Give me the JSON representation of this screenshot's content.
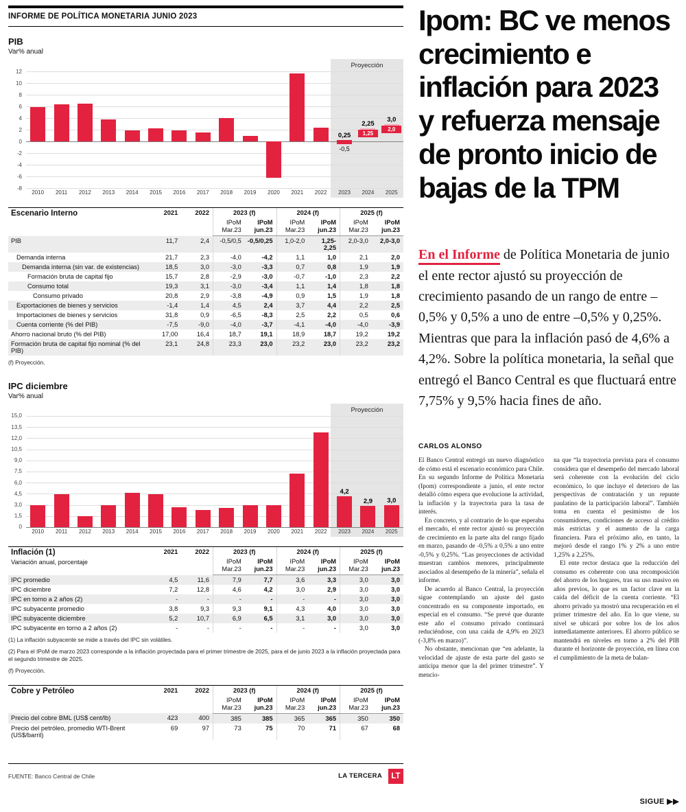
{
  "colors": {
    "red": "#e2223f",
    "pink": "#f2a9b6",
    "projection_zone": "#e5e5e5",
    "row_stripe": "#ececec"
  },
  "masthead": {
    "kicker": "INFORME DE POLÍTICA MONETARIA JUNIO 2023"
  },
  "headline_lines": [
    "Ipom: BC ve menos",
    "crecimiento e",
    "inflación para 2023",
    "y refuerza mensaje",
    "de pronto inicio de",
    "bajas de la TPM"
  ],
  "lead": {
    "highlight": "En el Informe",
    "rest": " de Política Monetaria de junio el ente rector ajustó su proyección de crecimiento pasando de un rango de entre –0,5% y 0,5% a uno de entre –0,5% y 0,25%. Mientras que para la inflación pasó de 4,6% a 4,2%. Sobre la política monetaria, la señal que entregó el Banco Central es que fluctuará entre 7,75% y 9,5% hacia fines de año."
  },
  "byline": "CARLOS ALONSO",
  "article": {
    "col1": [
      "El Banco Central entregó un nuevo diagnóstico de cómo está el escenario económico para Chile. En su segundo Informe de Política Monetaria (Ipom) correspondiente a junio, el ente rector detalló cómo espera que evolucione la actividad, la inflación y la trayectoria para la tasa de interés.",
      "En concreto, y al contrario de lo que esperaba el mercado, el ente rector ajustó su proyección de crecimiento en la parte alta del rango fijado en marzo, pasando de -0,5% a 0,5% a uno entre -0,5% y 0,25%. “Las proyecciones de actividad muestran cambios menores, principalmente asociados al desempeño de la minería”, señala el informe.",
      "De acuerdo al Banco Central, la proyección sigue contemplando un ajuste del gasto concentrado en su componente importado, en especial en el consumo. “Se prevé que durante este año el consumo privado continuará reduciéndose, con una caída de 4,9% en 2023 (-3,8% en marzo)”.",
      "No obstante, mencionan que “en adelante, la velocidad de ajuste de esta parte del gasto se anticipa menor que la del primer trimestre”. Y mencio-"
    ],
    "col2": [
      "na que “la trayectoria prevista para el consumo considera que el desempeño del mercado laboral será coherente con la evolución del ciclo económico, lo que incluye el deterioro de las perspectivas de contratación y un repunte paulatino de la participación laboral”. También toma en cuenta el pesimismo de los consumidores, condiciones de acceso al crédito más estrictas y el aumento de la carga financiera. Para el próximo año, en tanto, la mejoró desde el rango 1% y 2% a uno entre 1,25% a 2,25%.",
      "El ente rector destaca que la reducción del consumo es coherente con una recomposición del ahorro de los hogares, tras su uso masivo en años previos, lo que es un factor clave en la caída del déficit de la cuenta corriente. “El ahorro privado ya mostró una recuperación en el primer trimestre del año. En lo que viene, su nivel se ubicará por sobre los de los años inmediatamente anteriores. El ahorro público se mantendrá en niveles en torno a 2% del PIB durante el horizonte de proyección, en línea con el cumplimiento de la meta de balan-"
    ]
  },
  "chart_data": [
    {
      "id": "pib",
      "type": "bar",
      "title": "PIB",
      "ylabel": "Var% anual",
      "ylim": [
        -8,
        12
      ],
      "yticks": [
        12,
        10,
        8,
        6,
        4,
        2,
        0,
        -2,
        -4,
        -6,
        -8
      ],
      "ytick_labels": [
        "12",
        "10",
        "8",
        "6",
        "4",
        "2",
        "0",
        "-2",
        "-4",
        "-6",
        "-8"
      ],
      "categories": [
        "2010",
        "2011",
        "2012",
        "2013",
        "2014",
        "2015",
        "2016",
        "2017",
        "2018",
        "2019",
        "2020",
        "2021",
        "2022",
        "2023",
        "2024",
        "2025"
      ],
      "values": [
        5.9,
        6.4,
        6.5,
        3.8,
        1.9,
        2.2,
        1.9,
        1.5,
        4.0,
        0.9,
        -6.2,
        11.7,
        2.4,
        null,
        null,
        null
      ],
      "projection": {
        "label": "Proyección",
        "start_index": 13,
        "ranges": [
          {
            "category": "2023",
            "min": -0.5,
            "max": 0.25,
            "min_label": "-0,5",
            "max_label": "0,25",
            "style": "solid"
          },
          {
            "category": "2024",
            "min": 1.25,
            "max": 2.25,
            "min_label": "1,25",
            "max_label": "2,25",
            "style": "range"
          },
          {
            "category": "2025",
            "min": 2.0,
            "max": 3.0,
            "min_label": "2,0",
            "max_label": "3,0",
            "style": "range"
          }
        ]
      }
    },
    {
      "id": "ipc",
      "type": "bar",
      "title": "IPC diciembre",
      "ylabel": "Var% anual",
      "ylim": [
        0,
        15
      ],
      "yticks": [
        15,
        13.5,
        12,
        10.5,
        9,
        7.5,
        6,
        4.5,
        3,
        1.5,
        0
      ],
      "ytick_labels": [
        "15,0",
        "13,5",
        "12,0",
        "10,5",
        "9,0",
        "7,5",
        "6,0",
        "4,5",
        "3,0",
        "1,5",
        "0"
      ],
      "categories": [
        "2010",
        "2011",
        "2012",
        "2013",
        "2014",
        "2015",
        "2016",
        "2017",
        "2018",
        "2019",
        "2020",
        "2021",
        "2022",
        "2023",
        "2024",
        "2025"
      ],
      "values": [
        3.0,
        4.4,
        1.5,
        3.0,
        4.6,
        4.4,
        2.7,
        2.3,
        2.6,
        3.0,
        3.0,
        7.2,
        12.8,
        4.2,
        2.9,
        3.0
      ],
      "projection": {
        "label": "Proyección",
        "start_index": 13,
        "value_labels": [
          {
            "category": "2023",
            "label": "4,2"
          },
          {
            "category": "2024",
            "label": "2,9"
          },
          {
            "category": "2025",
            "label": "3,0"
          }
        ]
      }
    }
  ],
  "tables": [
    {
      "name": "escenario-interno-table",
      "title": "Escenario Interno",
      "subtitle": "",
      "years": [
        "2021",
        "2022",
        "2023 (f)",
        "2024 (f)",
        "2025 (f)"
      ],
      "sub_top": "IPoM",
      "sub_mar": "Mar.23",
      "sub_jun": "jun.23",
      "rows": [
        {
          "label": "PIB",
          "indent": 0,
          "values": [
            "11,7",
            "2,4",
            "-0,5/0,5",
            "-0,5/0,25",
            "1,0-2,0",
            "1,25-2,25",
            "2,0-3,0",
            "2,0-3,0"
          ]
        },
        {
          "label": "Demanda interna",
          "indent": 1,
          "values": [
            "21,7",
            "2,3",
            "-4,0",
            "-4,2",
            "1,1",
            "1,0",
            "2,1",
            "2,0"
          ]
        },
        {
          "label": "Demanda interna (sin var. de existencias)",
          "indent": 2,
          "values": [
            "18,5",
            "3,0",
            "-3,0",
            "-3,3",
            "0,7",
            "0,8",
            "1,9",
            "1,9"
          ]
        },
        {
          "label": "Formación bruta de capital fijo",
          "indent": 3,
          "values": [
            "15,7",
            "2,8",
            "-2,9",
            "-3,0",
            "-0,7",
            "-1,0",
            "2,3",
            "2,2"
          ]
        },
        {
          "label": "Consumo total",
          "indent": 3,
          "values": [
            "19,3",
            "3,1",
            "-3,0",
            "-3,4",
            "1,1",
            "1,4",
            "1,8",
            "1,8"
          ]
        },
        {
          "label": "Consumo privado",
          "indent": 4,
          "values": [
            "20,8",
            "2,9",
            "-3,8",
            "-4,9",
            "0,9",
            "1,5",
            "1,9",
            "1,8"
          ]
        },
        {
          "label": "Exportaciones de bienes y servicios",
          "indent": 1,
          "values": [
            "-1,4",
            "1,4",
            "4,5",
            "2,4",
            "3,7",
            "4,4",
            "2,2",
            "2,5"
          ]
        },
        {
          "label": "Importaciones de bienes y servicios",
          "indent": 1,
          "values": [
            "31,8",
            "0,9",
            "-6,5",
            "-8,3",
            "2,5",
            "2,2",
            "0,5",
            "0,6"
          ]
        },
        {
          "label": "Cuenta corriente (% del PIB)",
          "indent": 1,
          "values": [
            "-7,5",
            "-9,0",
            "-4,0",
            "-3,7",
            "-4,1",
            "-4,0",
            "-4,0",
            "-3,9"
          ]
        },
        {
          "label": "Ahorro nacional bruto (% del PIB)",
          "indent": 0,
          "values": [
            "17,00",
            "16,4",
            "18,7",
            "19,1",
            "18,9",
            "18,7",
            "19,2",
            "19,2"
          ]
        },
        {
          "label": "Formación bruta de capital fijo nominal (% del PIB)",
          "indent": 0,
          "values": [
            "23,1",
            "24,8",
            "23,3",
            "23,0",
            "23,2",
            "23,0",
            "23,2",
            "23,2"
          ]
        }
      ],
      "footnotes": [
        "(f) Proyección."
      ]
    },
    {
      "name": "inflacion-table",
      "title": "Inflación (1)",
      "subtitle": "Variación anual, porcentaje",
      "years": [
        "2021",
        "2022",
        "2023 (f)",
        "2024 (f)",
        "2025 (f)"
      ],
      "sub_top": "IPoM",
      "sub_mar": "Mar.23",
      "sub_jun": "jun.23",
      "rows": [
        {
          "label": "IPC promedio",
          "indent": 0,
          "values": [
            "4,5",
            "11,6",
            "7,9",
            "7,7",
            "3,6",
            "3,3",
            "3,0",
            "3,0"
          ]
        },
        {
          "label": "IPC diciembre",
          "indent": 0,
          "values": [
            "7,2",
            "12,8",
            "4,6",
            "4,2",
            "3,0",
            "2,9",
            "3,0",
            "3,0"
          ]
        },
        {
          "label": "IPC en torno a 2 años (2)",
          "indent": 0,
          "values": [
            "-",
            "-",
            "-",
            "-",
            "-",
            "-",
            "3,0",
            "3,0"
          ]
        },
        {
          "label": "IPC subyacente promedio",
          "indent": 0,
          "values": [
            "3,8",
            "9,3",
            "9,3",
            "9,1",
            "4,3",
            "4,0",
            "3,0",
            "3,0"
          ]
        },
        {
          "label": "IPC subyacente diciembre",
          "indent": 0,
          "values": [
            "5,2",
            "10,7",
            "6,9",
            "6,5",
            "3,1",
            "3,0",
            "3,0",
            "3,0"
          ]
        },
        {
          "label": "IPC subyacente en torno a 2 años (2)",
          "indent": 0,
          "values": [
            "-",
            "-",
            "-",
            "-",
            "-",
            "-",
            "3,0",
            "3,0"
          ]
        }
      ],
      "footnotes": [
        "(1) La inflación subyacente se mide a través del IPC sin volátiles.",
        "(2) Para el IPoM de marzo 2023 corresponde a la inflación proyectada para el primer trimestre de 2025, para el de junio 2023 a la inflación proyectada para el segundo trimestre de 2025.",
        "(f) Proyección."
      ]
    },
    {
      "name": "cobre-petroleo-table",
      "title": "Cobre y Petróleo",
      "subtitle": "",
      "years": [
        "2021",
        "2022",
        "2023 (f)",
        "2024 (f)",
        "2025 (f)"
      ],
      "sub_top": "IPoM",
      "sub_mar": "Mar.23",
      "sub_jun": "jun.23",
      "rows": [
        {
          "label": "Precio del cobre BML (US$ cent/lb)",
          "indent": 0,
          "values": [
            "423",
            "400",
            "385",
            "385",
            "365",
            "365",
            "350",
            "350"
          ]
        },
        {
          "label": "Precio del petróleo, promedio WTI-Brent (US$/barril)",
          "indent": 0,
          "values": [
            "69",
            "97",
            "73",
            "75",
            "70",
            "71",
            "67",
            "68"
          ]
        }
      ],
      "footnotes": []
    }
  ],
  "footer": {
    "source": "FUENTE: Banco Central de Chile",
    "brand": "LA TERCERA",
    "logo": "LT",
    "sigue": "SIGUE",
    "sigue_arrows": "▶▶"
  }
}
